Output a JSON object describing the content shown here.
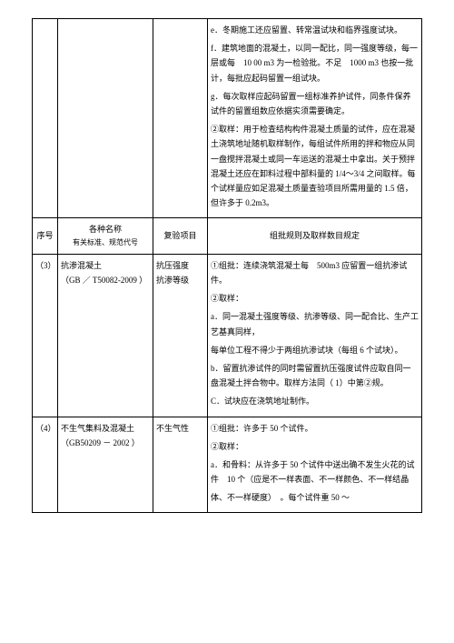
{
  "topRow": {
    "e": "e．冬期施工还应留置、转常温试块和临界强度试块。",
    "f": "f．建筑地面的混凝土，以同一配比，同一强度等级，每一层或每　10 00 m3 为一检验批。不足　1000 m3 也按一批计，每批应起码留置一组试块。",
    "g": "g．每次取样应起码留置一组标准养护试件，同条件保养试件的留置组数应依据实须需要确定。",
    "gExtra": "②取样：用于检查结构构件混凝土质量的试件，应在混凝土浇筑地址随机取样制作，每组试件所用的拌和物应从同一盘搅拌混凝土或同一车运送的混凝土中拿出。关于预拌混凝土还应在卸料过程中部料量的 1/4～3/4 之间取样。每个试样量应如足混凝土质量查验项目所需用量的 1.5 倍，但许多于 0.2m3。"
  },
  "headerRow": {
    "seq": "序号",
    "nameTop": "各种名称",
    "nameBottom": "有关标准、规范代号",
    "test": "复验项目",
    "rule": "组批规则及取样数目规定"
  },
  "row3": {
    "seq": "（3）",
    "name": "抗渗混凝土\n（GB ／ T50082-2009 ）",
    "test": "抗压强度\n抗渗等级",
    "rule1": "①组批：连续浇筑混凝土每　500m3 应留置一组抗渗试件。",
    "rule2": "②取样：",
    "ruleA": "a．同一混凝土强度等级、抗渗等级、同一配合比、生产工艺基真同样，",
    "ruleA2": "每单位工程不得少于两组抗渗试块（每组 6 个试块）。",
    "ruleB": "b．留置抗渗试件的同时需留置抗压强度试件应取自同一盘混凝土拌合物中。取样方法同（ 1）中第②规。",
    "ruleC": "C．试块应在浇筑地址制作。"
  },
  "row4": {
    "seq": "（4）",
    "name": "不生气集料及混凝土\n（GB50209 － 2002 ）",
    "test": "不生气性",
    "rule1": "①组批：许多于 50 个试件。",
    "rule2": "②取样：",
    "ruleA": "a．和骨料：从许多于 50 个试件中送出确不发生火花的试件　10 个（应是不一样表面、不一样颜色、不一样结晶",
    "ruleA2": "体、不一样硬度）　。每个试件重 50 ～"
  }
}
